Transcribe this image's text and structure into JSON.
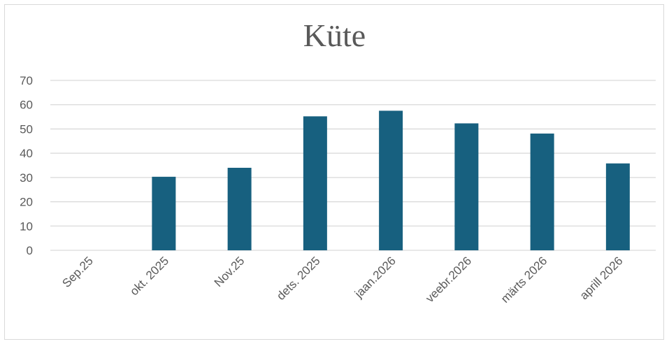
{
  "chart_data": {
    "type": "bar",
    "title": "Küte",
    "categories": [
      "Sep.25",
      "okt. 2025",
      "Nov.25",
      "dets. 2025",
      "jaan.2026",
      "veebr.2026",
      "märts 2026",
      "aprill 2026"
    ],
    "values": [
      0,
      30.3,
      34,
      55.2,
      57.5,
      52.3,
      48.1,
      35.8
    ],
    "ylim": [
      0,
      70
    ],
    "yticks": [
      0,
      10,
      20,
      30,
      40,
      50,
      60,
      70
    ],
    "grid": true,
    "legend": "none",
    "bar_color": "#17607f",
    "grid_color": "#d9d9d9"
  }
}
